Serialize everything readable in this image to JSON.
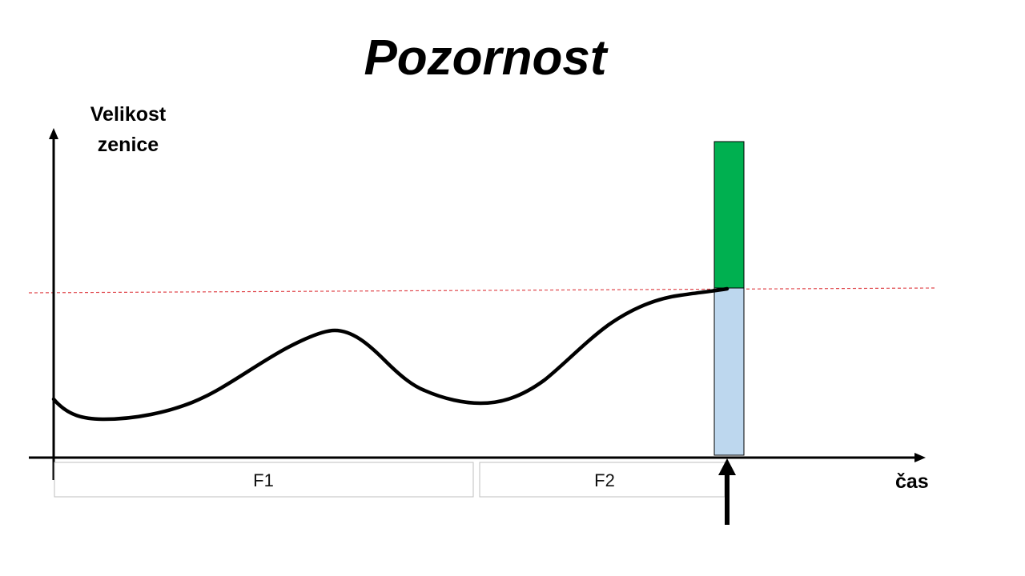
{
  "title": "Pozornost",
  "y_axis_label": "Velikost zenice",
  "x_axis_label": "čas",
  "phases": [
    {
      "label": "F1"
    },
    {
      "label": "F2"
    }
  ],
  "colors": {
    "curve": "#000000",
    "threshold_line": "#e0474c",
    "bar_upper": "#00b050",
    "bar_lower": "#bdd7ee",
    "phase_box_border": "#bfbfbf"
  },
  "icons": {
    "event_marker": "up-arrow-icon"
  }
}
